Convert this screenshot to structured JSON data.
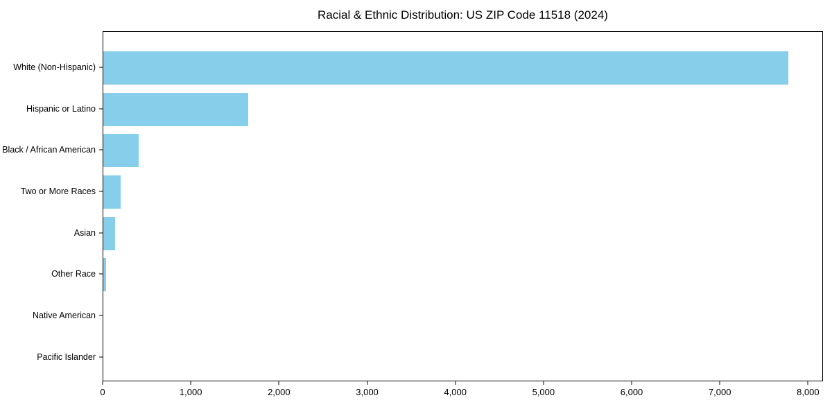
{
  "chart_data": {
    "type": "bar",
    "orientation": "horizontal",
    "title": "Racial & Ethnic Distribution: US ZIP Code 11518 (2024)",
    "categories": [
      "White (Non-Hispanic)",
      "Hispanic or Latino",
      "Black / African American",
      "Two or More Races",
      "Asian",
      "Other Race",
      "Native American",
      "Pacific Islander"
    ],
    "values": [
      7770,
      1640,
      400,
      195,
      135,
      35,
      0,
      0
    ],
    "xlabel": "",
    "ylabel": "",
    "xlim": [
      0,
      8170
    ],
    "x_ticks": [
      0,
      1000,
      2000,
      3000,
      4000,
      5000,
      6000,
      7000,
      8000
    ],
    "x_tick_labels": [
      "0",
      "1,000",
      "2,000",
      "3,000",
      "4,000",
      "5,000",
      "6,000",
      "7,000",
      "8,000"
    ],
    "bar_color": "#87CEEB",
    "axis_color": "#000000",
    "background_color": "#ffffff",
    "grid": false,
    "legend": null
  }
}
